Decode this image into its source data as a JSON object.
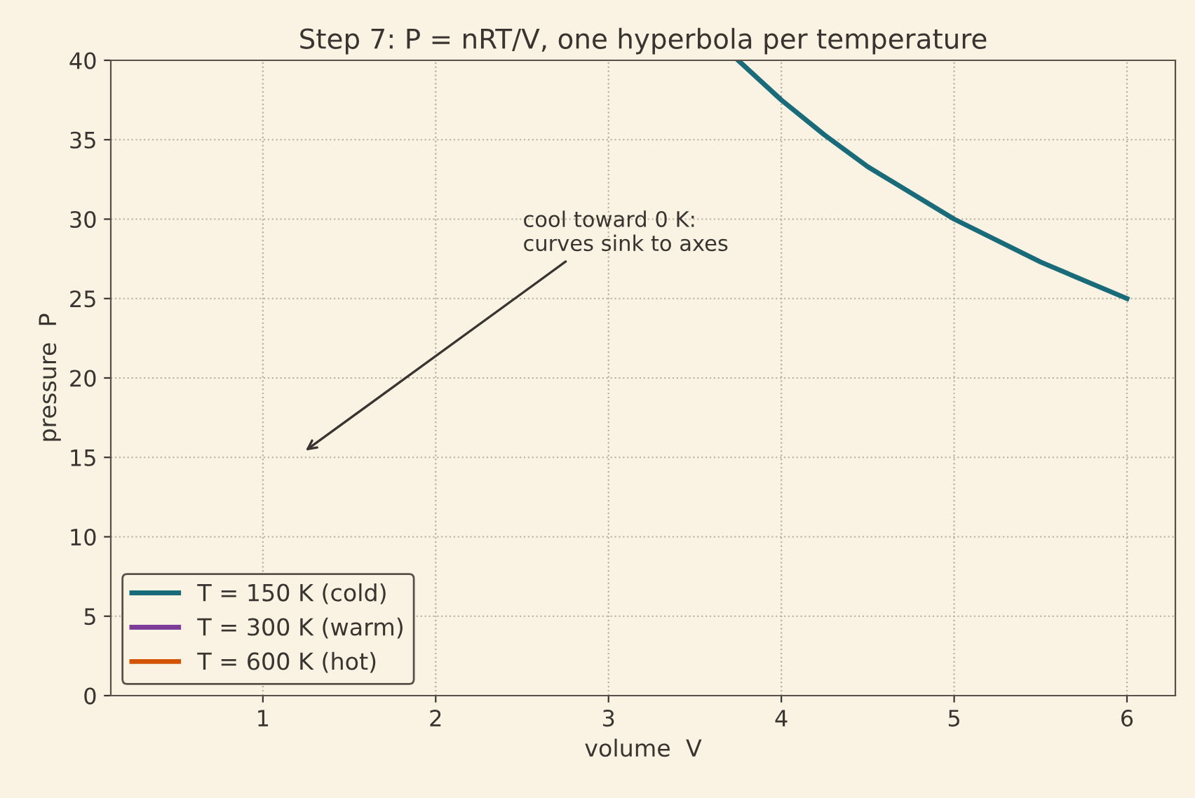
{
  "chart_data": {
    "type": "line",
    "title": "Step 7: P = nRT/V, one hyperbola per temperature",
    "xlabel": "volume  V",
    "ylabel": "pressure  P",
    "xlim": [
      0.12,
      6.28
    ],
    "xticks": [
      1,
      2,
      3,
      4,
      5,
      6
    ],
    "ylim": [
      0,
      40
    ],
    "yticks": [
      0,
      5,
      10,
      15,
      20,
      25,
      30,
      35,
      40
    ],
    "grid": true,
    "legend": "bottom left",
    "marker": "none",
    "line_style": "solid",
    "series": [
      {
        "name": "T = 150 K (cold)",
        "color": "#1a6b7a",
        "x": [
          3.75,
          4,
          4.25,
          4.5,
          5,
          5.5,
          6
        ],
        "values": [
          40,
          37.5,
          35.3,
          33.3,
          30,
          27.3,
          25
        ]
      },
      {
        "name": "T = 300 K (warm)",
        "color": "#7d3c98"
      },
      {
        "name": "T = 600 K (hot)",
        "color": "#d35400"
      }
    ],
    "annotations": [
      "cool toward 0 K:\ncurves sink to axes"
    ]
  }
}
